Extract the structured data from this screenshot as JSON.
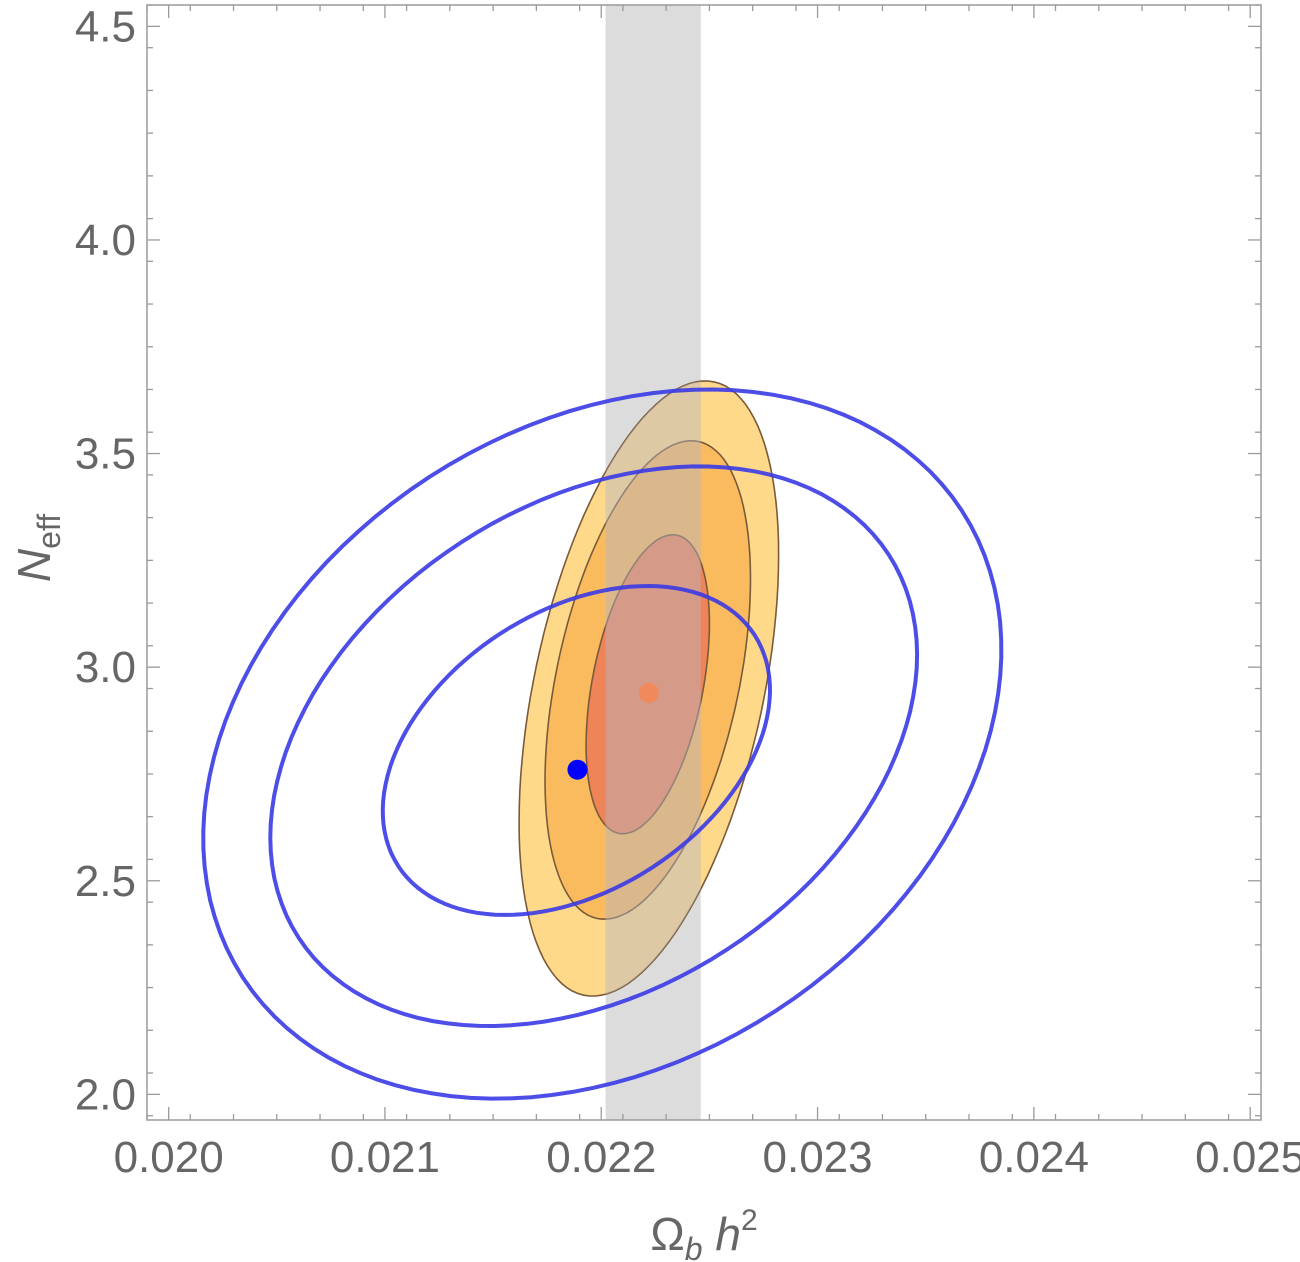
{
  "chart_data": {
    "type": "contour",
    "xlabel": {
      "main": "Ω",
      "sub": "b",
      "main2": " h",
      "sup": "2"
    },
    "ylabel": {
      "main": "N",
      "sub": "eff"
    },
    "xlim": [
      0.0199,
      0.02505
    ],
    "ylim": [
      1.94,
      4.55
    ],
    "xticks": [
      "0.020",
      "0.021",
      "0.022",
      "0.023",
      "0.024",
      "0.025"
    ],
    "yticks": [
      "2.0",
      "2.5",
      "3.0",
      "3.5",
      "4.0",
      "4.5"
    ],
    "xtick_values": [
      0.02,
      0.021,
      0.022,
      0.023,
      0.024,
      0.025
    ],
    "ytick_values": [
      2.0,
      2.5,
      3.0,
      3.5,
      4.0,
      4.5
    ],
    "band": {
      "x_min": 0.02202,
      "x_max": 0.02246,
      "color": "#dcdcdc"
    },
    "filled_contours": {
      "center": [
        0.02222,
        2.95
      ],
      "colors": [
        "#ffd98a",
        "#f9bb5e",
        "#ee8457"
      ],
      "levels": [
        {
          "x_min": 0.02162,
          "x_max": 0.02282,
          "y_min": 2.23,
          "y_max": 3.67,
          "angle_deg": -78
        },
        {
          "x_min": 0.02174,
          "x_max": 0.02269,
          "y_min": 2.41,
          "y_max": 3.53,
          "angle_deg": -78
        },
        {
          "x_min": 0.02193,
          "x_max": 0.0225,
          "y_min": 2.61,
          "y_max": 3.31,
          "angle_deg": -79
        }
      ]
    },
    "line_contours": {
      "color": "#3a3ae6",
      "levels": [
        {
          "x_min": 0.02016,
          "x_max": 0.02385,
          "y_min": 1.99,
          "y_max": 3.65
        },
        {
          "x_min": 0.02047,
          "x_max": 0.02346,
          "y_min": 2.16,
          "y_max": 3.47
        },
        {
          "x_min": 0.02099,
          "x_max": 0.02278,
          "y_min": 2.42,
          "y_max": 3.19
        }
      ]
    },
    "points": [
      {
        "x": 0.02189,
        "y": 2.76,
        "color": "#0000ff"
      },
      {
        "x": 0.02222,
        "y": 2.94,
        "color": "#f08a5d"
      }
    ]
  }
}
